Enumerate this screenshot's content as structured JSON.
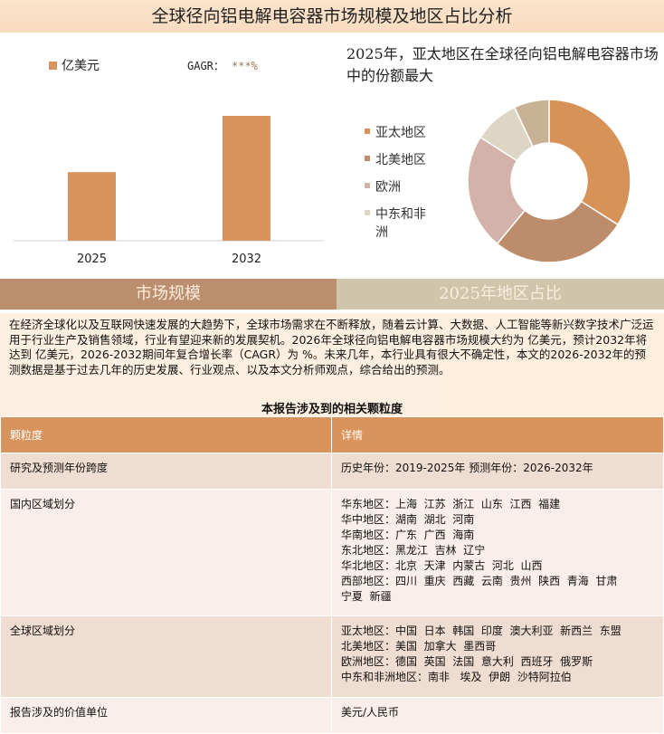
{
  "title": "全球径向铝电解电容器市场规模及地区占比分析",
  "bar_chart": {
    "chart_data": {
      "type": "bar",
      "legend": "亿美元",
      "cagr_label": "GAGR：",
      "cagr_value": "***%",
      "categories": [
        "2025",
        "2032"
      ],
      "values": [
        1,
        1.82
      ],
      "color": "#d9935c"
    }
  },
  "pie_chart": {
    "title": "2025年，亚太地区在全球径向铝电解电容器市场中的份额最大",
    "chart_data": {
      "type": "pie",
      "donut": true,
      "slices": [
        {
          "name": "亚太地区",
          "value": 34,
          "color": "#d79258"
        },
        {
          "name": "北美地区",
          "value": 27,
          "color": "#bc8c6b"
        },
        {
          "name": "欧洲",
          "value": 23,
          "color": "#d3b3a9"
        },
        {
          "name": "中东和非洲",
          "value": 9,
          "color": "#ddd6c5"
        },
        {
          "name": "",
          "value": 7,
          "color": "#c8b295"
        }
      ]
    }
  },
  "sections": {
    "market_size": "市场规模",
    "region_share": "2025年地区占比"
  },
  "description": "在经济全球化以及互联网快速发展的大趋势下，全球市场需求在不断释放，随着云计算、大数据、人工智能等新兴数字技术广泛运用于行业生产及销售领域，行业有望迎来新的发展契机。2026年全球径向铝电解电容器市场规模大约为 亿美元，预计2032年将达到 亿美元，2026-2032期间年复合增长率（CAGR）为 %。未来几年，本行业具有很大不确定性，本文的2026-2032年的预测数据是基于过去几年的历史发展、行业观点、以及本文分析师观点，综合给出的预测。",
  "table": {
    "caption": "本报告涉及到的相关颗粒度",
    "headers": [
      "颗粒度",
      "详情"
    ],
    "rows": [
      {
        "label": "研究及预测年份跨度",
        "lines": [
          "历史年份：2019-2025年 预测年份：2026-2032年"
        ]
      },
      {
        "label": "国内区域划分",
        "lines": [
          "华东地区：上海  江苏  浙江  山东  江西  福建",
          "华中地区：湖南  湖北  河南",
          "华南地区：广东  广西  海南",
          "东北地区：黑龙江  吉林  辽宁",
          "华北地区：北京  天津  内蒙古  河北  山西",
          "西部地区：四川  重庆  西藏  云南  贵州  陕西  青海  甘肃",
          "宁夏  新疆"
        ]
      },
      {
        "label": "全球区域划分",
        "lines": [
          "亚太地区：中国  日本  韩国  印度  澳大利亚  新西兰  东盟",
          "北美地区：美国  加拿大  墨西哥",
          "欧洲地区：德国  英国  法国  意大利  西班牙  俄罗斯",
          "中东和非洲地区：南非   埃及  伊朗  沙特阿拉伯"
        ]
      },
      {
        "label": "报告涉及的价值单位",
        "lines": [
          "美元/人民币"
        ]
      }
    ]
  }
}
